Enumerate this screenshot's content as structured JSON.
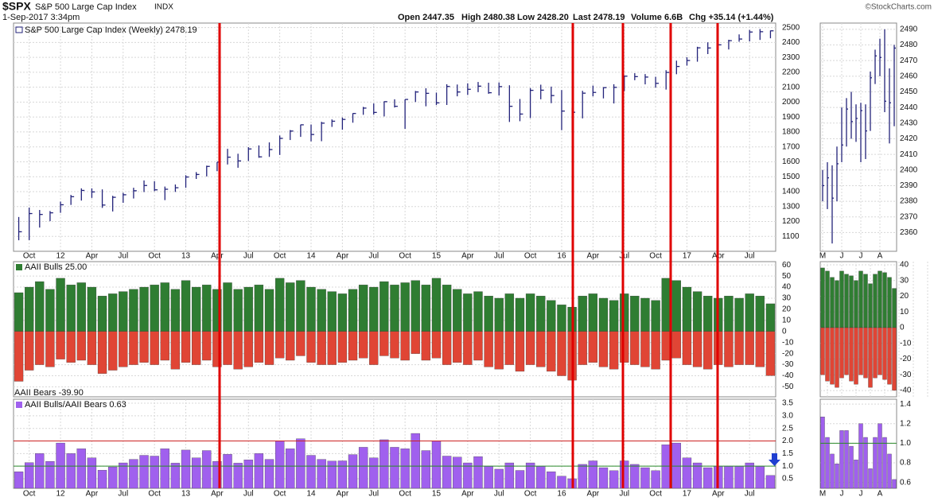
{
  "header": {
    "symbol": "$SPX",
    "name": "S&P 500 Large Cap Index",
    "exchange": "INDX",
    "date": "1-Sep-2017 3:34pm",
    "quote": [
      "Open 2447.35",
      "High 2480.38",
      "Low 2428.20",
      "Last 2478.19",
      "Volume 6.6B",
      "Chg +35.14 (+1.44%)"
    ],
    "copyright": "©StockCharts.com"
  },
  "chart_data": [
    {
      "type": "ohlc",
      "title": "S&P 500 Large Cap Index (Weekly) 2478.19",
      "color": "#22227a",
      "grid": true,
      "categories": [
        null,
        "Oct",
        null,
        null,
        "12",
        null,
        null,
        "Apr",
        null,
        null,
        "Jul",
        null,
        null,
        "Oct",
        null,
        null,
        "13",
        null,
        null,
        "Apr",
        null,
        null,
        "Jul",
        null,
        null,
        "Oct",
        null,
        null,
        "14",
        null,
        null,
        "Apr",
        null,
        null,
        "Jul",
        null,
        null,
        "Oct",
        null,
        null,
        "15",
        null,
        null,
        "Apr",
        null,
        null,
        "Jul",
        null,
        null,
        "Oct",
        null,
        null,
        "16",
        null,
        null,
        "Apr",
        null,
        null,
        "Jul",
        null,
        null,
        "Oct",
        null,
        null,
        "17",
        null,
        null,
        "Apr",
        null,
        null,
        "Jul",
        null,
        null
      ],
      "high": [
        1230,
        1293,
        1277,
        1270,
        1333,
        1378,
        1422,
        1422,
        1415,
        1372,
        1392,
        1426,
        1475,
        1470,
        1434,
        1448,
        1510,
        1531,
        1574,
        1598,
        1687,
        1654,
        1698,
        1710,
        1730,
        1776,
        1813,
        1849,
        1850,
        1868,
        1884,
        1897,
        1925,
        1968,
        1991,
        2005,
        2019,
        2018,
        2075,
        2093,
        2064,
        2120,
        2118,
        2126,
        2135,
        2130,
        2132,
        2113,
        2021,
        2094,
        2117,
        2104,
        2081,
        1962,
        2076,
        2111,
        2100,
        2120,
        2178,
        2194,
        2188,
        2170,
        2214,
        2278,
        2301,
        2371,
        2401,
        2398,
        2418,
        2454,
        2484,
        2490,
        2480
      ],
      "low": [
        1074,
        1075,
        1159,
        1202,
        1258,
        1311,
        1340,
        1358,
        1291,
        1267,
        1325,
        1354,
        1397,
        1403,
        1343,
        1398,
        1426,
        1485,
        1502,
        1537,
        1582,
        1560,
        1605,
        1627,
        1633,
        1646,
        1746,
        1767,
        1737,
        1738,
        1834,
        1815,
        1862,
        1915,
        1916,
        1904,
        1964,
        1821,
        2001,
        1972,
        1980,
        1981,
        2039,
        2048,
        2067,
        2056,
        2044,
        1867,
        1872,
        1893,
        2019,
        1993,
        1812,
        1810,
        1891,
        2039,
        2025,
        1991,
        2074,
        2147,
        2119,
        2097,
        2084,
        2187,
        2245,
        2271,
        2322,
        2328,
        2353,
        2405,
        2407,
        2417,
        2428
      ],
      "close": [
        1131,
        1253,
        1247,
        1258,
        1312,
        1366,
        1408,
        1398,
        1310,
        1362,
        1379,
        1406,
        1441,
        1412,
        1416,
        1426,
        1498,
        1515,
        1569,
        1598,
        1631,
        1606,
        1686,
        1633,
        1682,
        1757,
        1806,
        1848,
        1783,
        1859,
        1872,
        1884,
        1924,
        1960,
        1931,
        2003,
        1972,
        2018,
        2068,
        2059,
        1995,
        2105,
        2068,
        2086,
        2107,
        2063,
        2104,
        1972,
        1920,
        2079,
        2080,
        2044,
        1940,
        1932,
        2060,
        2065,
        2097,
        2099,
        2174,
        2171,
        2168,
        2126,
        2199,
        2239,
        2279,
        2364,
        2363,
        2384,
        2412,
        2423,
        2470,
        2472,
        2478
      ],
      "ylim": [
        1000,
        2530
      ],
      "yticks": [
        1100,
        1200,
        1300,
        1400,
        1500,
        1600,
        1700,
        1800,
        1900,
        2000,
        2100,
        2200,
        2300,
        2400,
        2500
      ]
    },
    {
      "type": "ohlc",
      "color": "#22227a",
      "grid": true,
      "categories": [
        "M",
        null,
        null,
        null,
        "J",
        null,
        null,
        null,
        "J",
        null,
        null,
        null,
        "A",
        null,
        null,
        null
      ],
      "high": [
        2400,
        2405,
        2403,
        2415,
        2440,
        2446,
        2450,
        2442,
        2443,
        2442,
        2463,
        2477,
        2484,
        2490,
        2465,
        2480
      ],
      "low": [
        2380,
        2375,
        2353,
        2380,
        2405,
        2415,
        2420,
        2418,
        2405,
        2407,
        2425,
        2455,
        2460,
        2437,
        2417,
        2428
      ],
      "close": [
        2390,
        2395,
        2382,
        2404,
        2416,
        2439,
        2431,
        2433,
        2438,
        2425,
        2459,
        2473,
        2472,
        2444,
        2443,
        2478
      ],
      "ylim": [
        2348,
        2494
      ],
      "yticks": [
        2360,
        2370,
        2380,
        2390,
        2400,
        2410,
        2420,
        2430,
        2440,
        2450,
        2460,
        2470,
        2480,
        2490
      ]
    },
    {
      "type": "bar",
      "grid": true,
      "ylim": [
        -59,
        63
      ],
      "yticks": [
        60,
        50,
        40,
        30,
        20,
        10,
        0,
        -10,
        -20,
        -30,
        -40,
        -50
      ],
      "series": [
        {
          "name": "AAII Bulls 25.00",
          "color": "#2f7d32",
          "values": [
            35,
            40,
            45,
            38,
            48,
            42,
            44,
            40,
            32,
            34,
            36,
            38,
            40,
            42,
            44,
            38,
            46,
            40,
            42,
            38,
            44,
            38,
            40,
            42,
            38,
            48,
            44,
            46,
            40,
            38,
            36,
            34,
            38,
            42,
            40,
            45,
            42,
            44,
            46,
            42,
            48,
            42,
            38,
            34,
            36,
            32,
            30,
            34,
            30,
            34,
            32,
            28,
            24,
            22,
            32,
            34,
            30,
            28,
            34,
            32,
            30,
            28,
            48,
            46,
            40,
            36,
            32,
            30,
            32,
            30,
            34,
            32,
            25
          ]
        },
        {
          "name": "AAII Bears -39.90",
          "color": "#e04535",
          "values": [
            -45,
            -35,
            -30,
            -32,
            -25,
            -28,
            -26,
            -30,
            -38,
            -35,
            -32,
            -30,
            -28,
            -30,
            -26,
            -34,
            -28,
            -30,
            -26,
            -32,
            -30,
            -34,
            -32,
            -28,
            -30,
            -24,
            -26,
            -22,
            -28,
            -30,
            -30,
            -28,
            -26,
            -24,
            -30,
            -22,
            -24,
            -26,
            -20,
            -26,
            -24,
            -30,
            -28,
            -30,
            -26,
            -32,
            -34,
            -30,
            -36,
            -30,
            -32,
            -36,
            -40,
            -44,
            -30,
            -28,
            -32,
            -34,
            -28,
            -30,
            -32,
            -34,
            -26,
            -24,
            -30,
            -32,
            -34,
            -30,
            -32,
            -30,
            -30,
            -32,
            -39.9
          ]
        }
      ]
    },
    {
      "type": "bar",
      "grid": true,
      "ylim": [
        -44,
        42
      ],
      "yticks": [
        40,
        30,
        20,
        10,
        0,
        -10,
        -20,
        -30,
        -40
      ],
      "series": [
        {
          "color": "#2f7d32",
          "values": [
            38,
            36,
            32,
            30,
            36,
            34,
            33,
            30,
            36,
            34,
            28,
            34,
            36,
            35,
            32,
            25
          ]
        },
        {
          "color": "#e04535",
          "values": [
            -30,
            -34,
            -36,
            -38,
            -32,
            -30,
            -34,
            -36,
            -30,
            -32,
            -38,
            -32,
            -30,
            -33,
            -36,
            -39.9
          ]
        }
      ]
    },
    {
      "type": "bar",
      "grid": true,
      "ylim": [
        0.12,
        3.66
      ],
      "yticks": [
        {
          "value": 0.5,
          "label": "0.5"
        },
        {
          "value": 1,
          "label": "1.0"
        },
        {
          "value": 1.5,
          "label": "1.5"
        },
        {
          "value": 2,
          "label": "2.0"
        },
        {
          "value": 2.5,
          "label": "2.5"
        },
        {
          "value": 3,
          "label": "3.0"
        },
        {
          "value": 3.5,
          "label": "3.5"
        }
      ],
      "reference_lines": [
        {
          "value": 2,
          "color": "#cc2222"
        },
        {
          "value": 1,
          "color": "#2a8a2a"
        }
      ],
      "series": [
        {
          "name": "AAII Bulls/AAII Bears 0.63",
          "color": "#a060ee",
          "values": [
            0.78,
            1.14,
            1.5,
            1.19,
            1.92,
            1.5,
            1.69,
            1.33,
            0.84,
            0.97,
            1.13,
            1.27,
            1.43,
            1.4,
            1.69,
            1.12,
            1.64,
            1.33,
            1.62,
            1.19,
            1.47,
            1.12,
            1.25,
            1.5,
            1.27,
            2,
            1.69,
            2.09,
            1.43,
            1.27,
            1.2,
            1.21,
            1.46,
            1.75,
            1.33,
            2.05,
            1.75,
            1.69,
            2.3,
            1.62,
            2,
            1.4,
            1.36,
            1.13,
            1.38,
            1,
            0.88,
            1.13,
            0.83,
            1.13,
            1,
            0.78,
            0.6,
            0.5,
            1.07,
            1.21,
            0.94,
            0.82,
            1.21,
            1.07,
            0.94,
            0.82,
            1.85,
            1.92,
            1.33,
            1.13,
            0.94,
            1,
            1,
            1,
            1.13,
            1,
            0.63
          ]
        }
      ]
    },
    {
      "type": "bar",
      "grid": true,
      "ylim": [
        0.54,
        1.45
      ],
      "yticks": [
        {
          "value": 0.6,
          "label": "0.6"
        },
        {
          "value": 0.8,
          "label": "0.8"
        },
        {
          "value": 1,
          "label": "1.0"
        },
        {
          "value": 1.2,
          "label": "1.2"
        },
        {
          "value": 1.4,
          "label": "1.4"
        }
      ],
      "reference_lines": [
        {
          "value": 1,
          "color": "#2a8a2a"
        }
      ],
      "series": [
        {
          "color": "#a060ee",
          "values": [
            1.27,
            1.06,
            0.89,
            0.79,
            1.13,
            1.13,
            0.97,
            0.83,
            1.2,
            1.06,
            0.74,
            1.06,
            1.2,
            1.06,
            0.89,
            0.63
          ]
        }
      ]
    }
  ]
}
